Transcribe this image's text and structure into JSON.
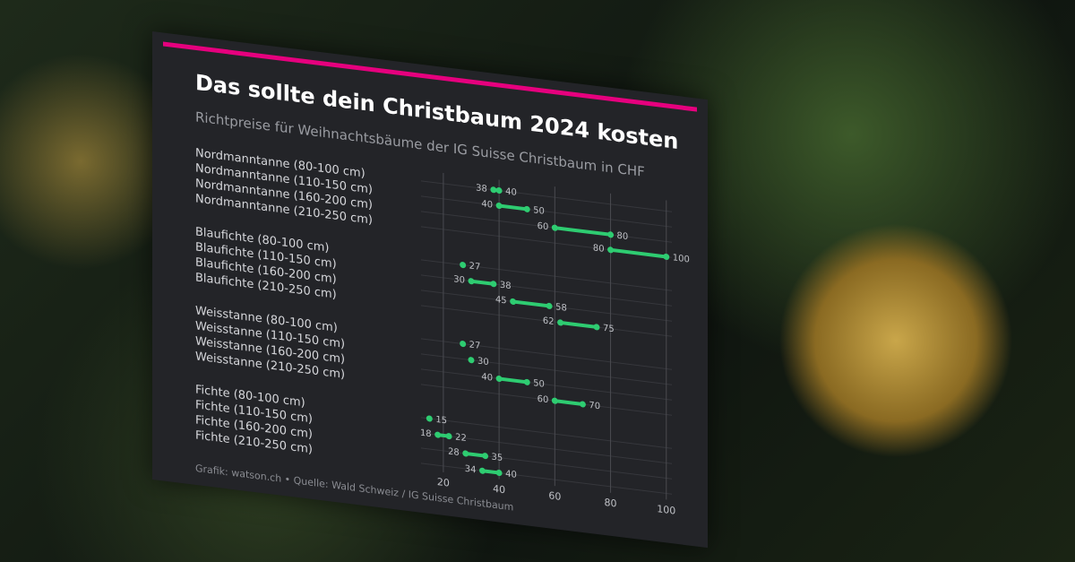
{
  "chart_data": {
    "type": "dumbbell",
    "title": "Das sollte dein Christbaum 2024 kosten",
    "subtitle": "Richtpreise für Weihnachtsbäume der IG Suisse Christbaum in CHF",
    "source": "Grafik: watson.ch • Quelle: Wald Schweiz / IG Suisse Christbaum",
    "categories": [
      "Nordmanntanne (80-100 cm)",
      "Nordmanntanne (110-150 cm)",
      "Nordmanntanne (160-200 cm)",
      "Nordmanntanne (210-250 cm)",
      "Blaufichte (80-100 cm)",
      "Blaufichte (110-150 cm)",
      "Blaufichte (160-200 cm)",
      "Blaufichte (210-250 cm)",
      "Weisstanne (80-100 cm)",
      "Weisstanne (110-150 cm)",
      "Weisstanne (160-200 cm)",
      "Weisstanne (210-250 cm)",
      "Fichte (80-100 cm)",
      "Fichte (110-150 cm)",
      "Fichte (160-200 cm)",
      "Fichte (210-250 cm)"
    ],
    "low": [
      38,
      40,
      60,
      80,
      27,
      30,
      45,
      62,
      27,
      30,
      40,
      60,
      15,
      18,
      28,
      34
    ],
    "high": [
      40,
      50,
      80,
      100,
      null,
      38,
      58,
      75,
      null,
      null,
      50,
      70,
      null,
      22,
      35,
      40
    ],
    "color": "#2ecc71",
    "xlim": [
      12,
      102
    ],
    "xticks": [
      20,
      40,
      60,
      80,
      100
    ],
    "grid": true
  }
}
